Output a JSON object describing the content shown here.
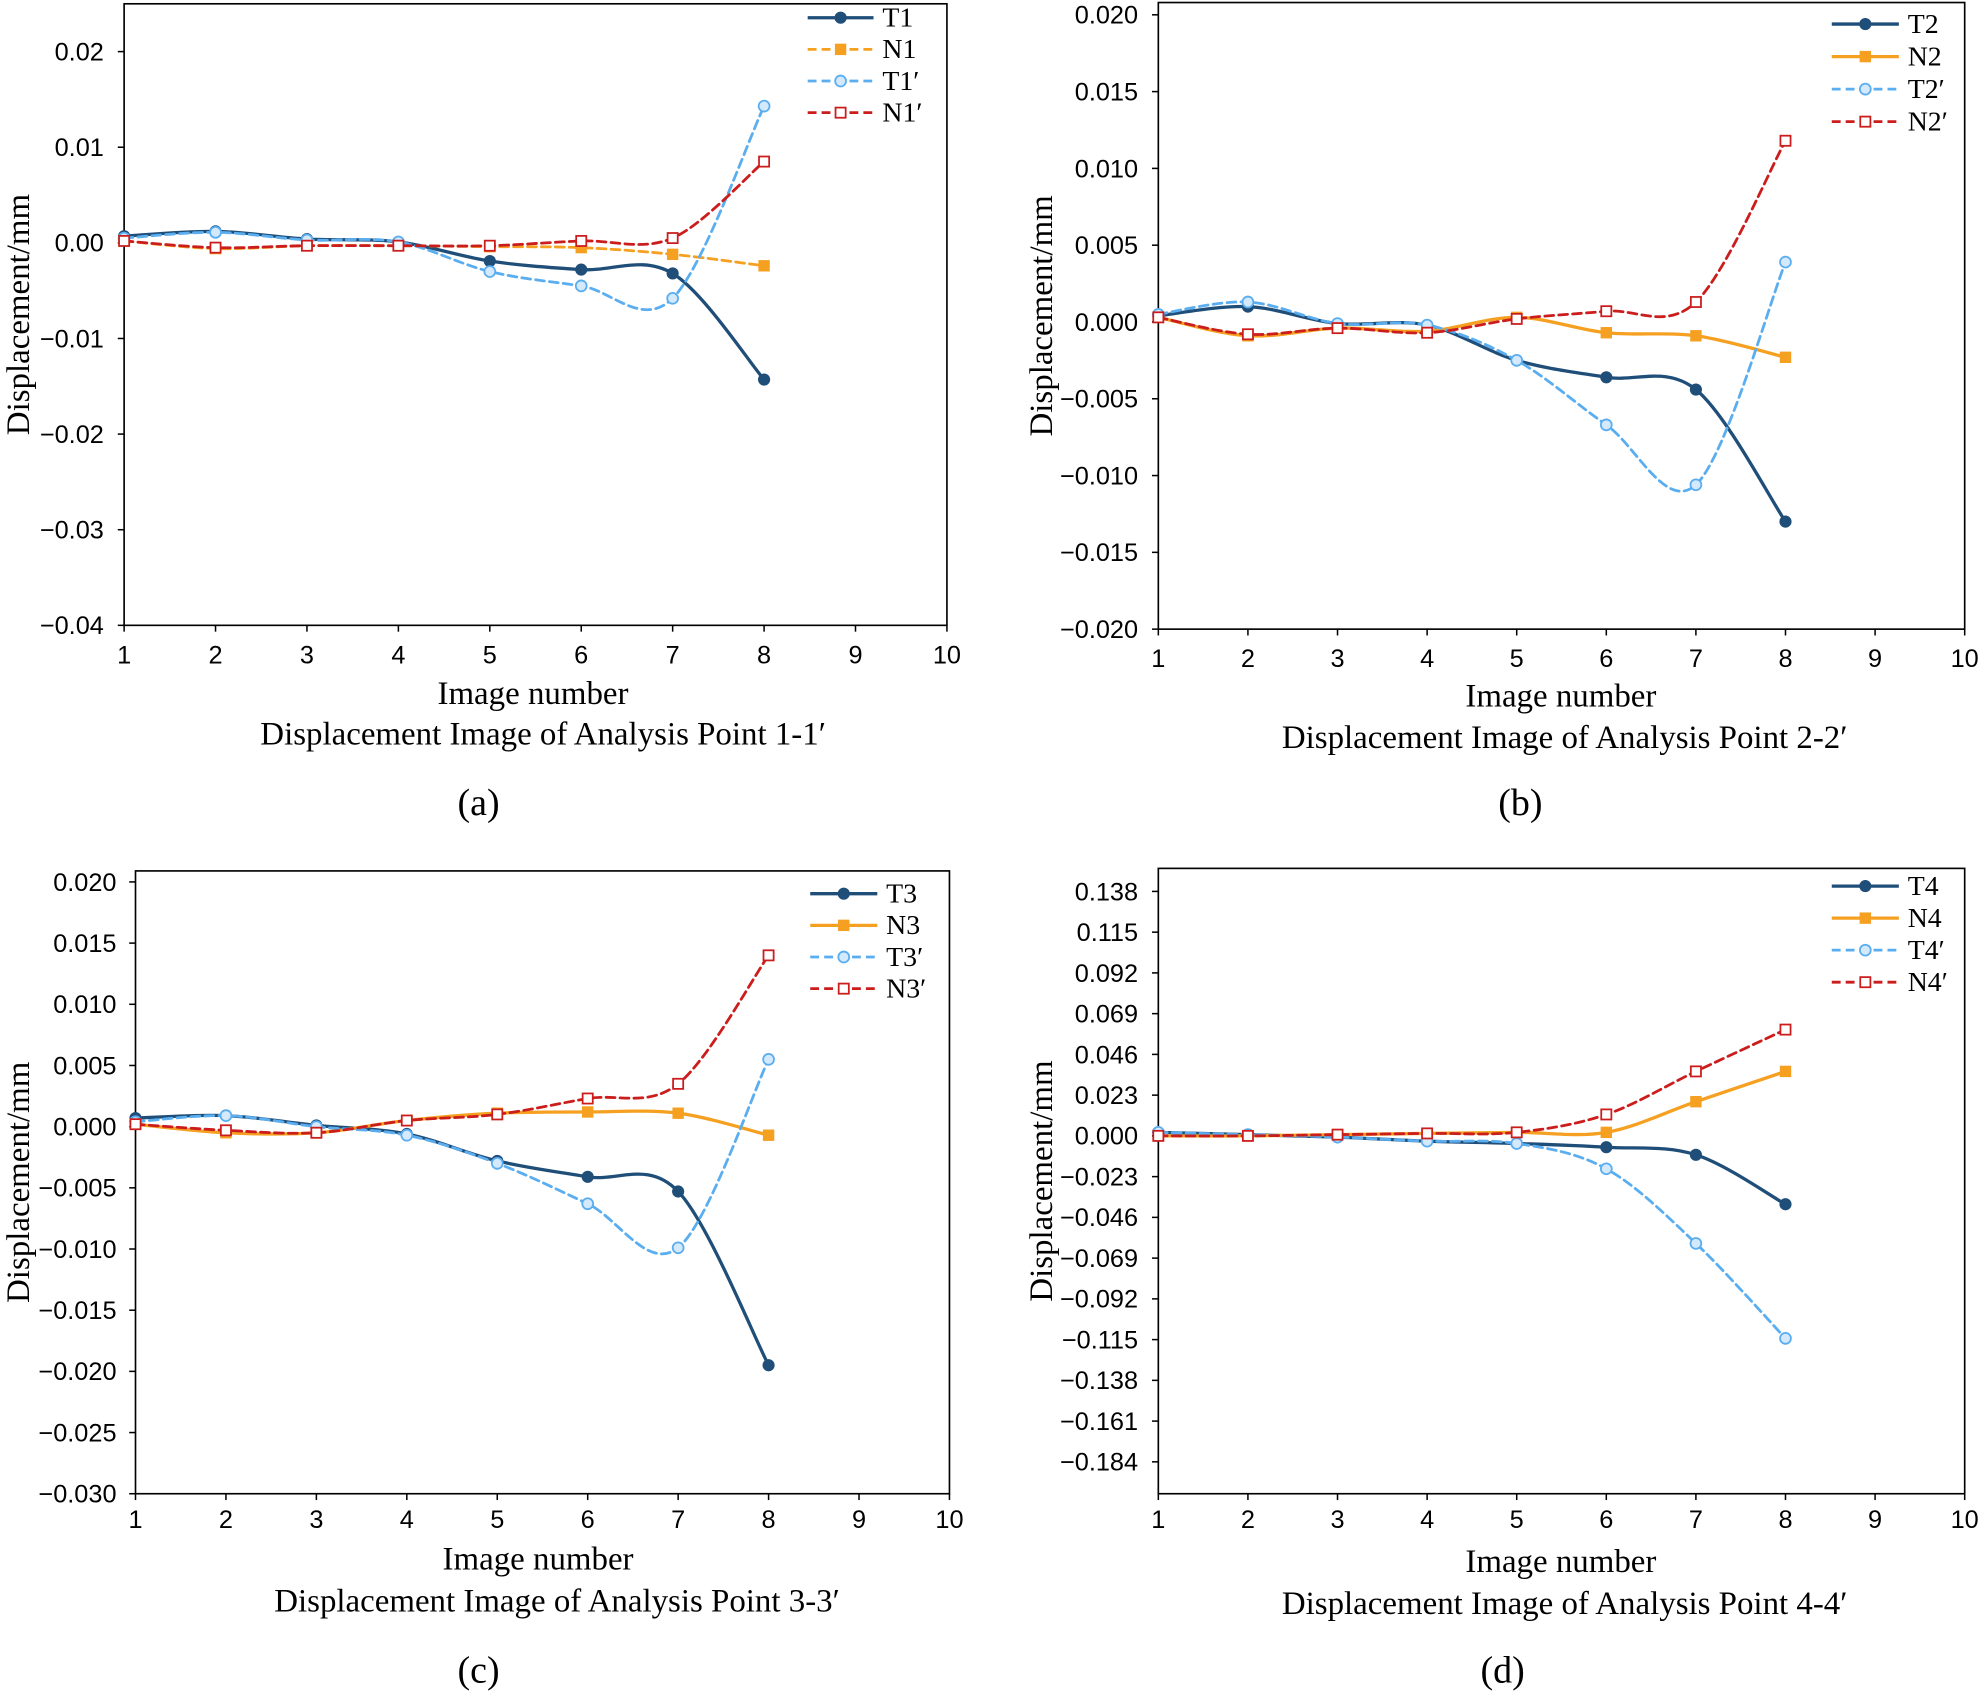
{
  "chart_data": [
    {
      "type": "line",
      "panel_label": "(a)",
      "title": "Displacement Image of Analysis Point 1-1′",
      "xlabel": "Image number",
      "ylabel": "Displacement/mm",
      "xlim": [
        1,
        10
      ],
      "ylim": [
        -0.04,
        0.025
      ],
      "xticks": [
        1,
        2,
        3,
        4,
        5,
        6,
        7,
        8,
        9,
        10
      ],
      "yticks": [
        0.02,
        0.01,
        0,
        -0.01,
        -0.02,
        -0.03,
        -0.04
      ],
      "ytick_labels": [
        "0.02",
        "0.01",
        "0.00",
        "−0.01",
        "−0.02",
        "−0.03",
        "−0.04"
      ],
      "grid": false,
      "legend": "top-right",
      "x": [
        1,
        2,
        3,
        4,
        5,
        6,
        7,
        8
      ],
      "series": [
        {
          "name": "T1",
          "color": "#1f4e79",
          "dashed": false,
          "square_marker": false,
          "hollow_marker": false,
          "values": [
            0.0007,
            0.0012,
            0.0004,
            0.0001,
            -0.0019,
            -0.0028,
            -0.0032,
            -0.0143
          ]
        },
        {
          "name": "N1",
          "color": "#f5a020",
          "dashed": true,
          "square_marker": true,
          "hollow_marker": false,
          "values": [
            0.0002,
            -0.0006,
            -0.0003,
            -0.0003,
            -0.0004,
            -0.0005,
            -0.0012,
            -0.0024
          ]
        },
        {
          "name": "T1′",
          "color": "#5aaef0",
          "marker_fill": "#d4e9fb",
          "dashed": true,
          "square_marker": false,
          "hollow_marker": true,
          "values": [
            0.0005,
            0.0011,
            0.0003,
            0.0001,
            -0.003,
            -0.0045,
            -0.0058,
            0.0143
          ]
        },
        {
          "name": "N1′",
          "color": "#cc1d1d",
          "marker_fill": "#ffffff",
          "dashed": true,
          "square_marker": true,
          "hollow_marker": true,
          "values": [
            0.0002,
            -0.0005,
            -0.0003,
            -0.0003,
            -0.0003,
            0.0002,
            0.0005,
            0.0085
          ]
        }
      ]
    },
    {
      "type": "line",
      "panel_label": "(b)",
      "title": "Displacement Image of Analysis Point 2-2′",
      "xlabel": "Image number",
      "ylabel": "Displacement/mm",
      "xlim": [
        1,
        10
      ],
      "ylim": [
        -0.02,
        0.0208
      ],
      "xticks": [
        1,
        2,
        3,
        4,
        5,
        6,
        7,
        8,
        9,
        10
      ],
      "yticks": [
        0.02,
        0.015,
        0.01,
        0.005,
        0,
        -0.005,
        -0.01,
        -0.015,
        -0.02
      ],
      "ytick_labels": [
        "0.020",
        "0.015",
        "0.010",
        "0.005",
        "0.000",
        "−0.005",
        "−0.010",
        "−0.015",
        "−0.020"
      ],
      "grid": false,
      "legend": "top-right",
      "x": [
        1,
        2,
        3,
        4,
        5,
        6,
        7,
        8
      ],
      "series": [
        {
          "name": "T2",
          "color": "#1f4e79",
          "dashed": false,
          "square_marker": false,
          "hollow_marker": false,
          "values": [
            0.0004,
            0.001,
            -0.0001,
            -0.0002,
            -0.0025,
            -0.0036,
            -0.0044,
            -0.013
          ]
        },
        {
          "name": "N2",
          "color": "#f5a020",
          "dashed": false,
          "square_marker": true,
          "hollow_marker": false,
          "values": [
            0.0003,
            -0.0009,
            -0.0004,
            -0.0006,
            0.0003,
            -0.0007,
            -0.0009,
            -0.0023
          ]
        },
        {
          "name": "T2′",
          "color": "#5aaef0",
          "marker_fill": "#d4e9fb",
          "dashed": true,
          "square_marker": false,
          "hollow_marker": true,
          "values": [
            0.0005,
            0.0013,
            -0.0001,
            -0.0002,
            -0.0025,
            -0.0067,
            -0.0106,
            0.0039
          ]
        },
        {
          "name": "N2′",
          "color": "#cc1d1d",
          "marker_fill": "#ffffff",
          "dashed": true,
          "square_marker": true,
          "hollow_marker": true,
          "values": [
            0.0003,
            -0.0008,
            -0.0004,
            -0.0007,
            0.0002,
            0.0007,
            0.0013,
            0.0118
          ]
        }
      ]
    },
    {
      "type": "line",
      "panel_label": "(c)",
      "title": "Displacement Image of Analysis Point 3-3′",
      "xlabel": "Image number",
      "ylabel": "Displacement/mm",
      "xlim": [
        1,
        10
      ],
      "ylim": [
        -0.03,
        0.0209
      ],
      "xticks": [
        1,
        2,
        3,
        4,
        5,
        6,
        7,
        8,
        9,
        10
      ],
      "yticks": [
        0.02,
        0.015,
        0.01,
        0.005,
        0,
        -0.005,
        -0.01,
        -0.015,
        -0.02,
        -0.025,
        -0.03
      ],
      "ytick_labels": [
        "0.020",
        "0.015",
        "0.010",
        "0.005",
        "0.000",
        "−0.005",
        "−0.010",
        "−0.015",
        "−0.020",
        "−0.025",
        "−0.030"
      ],
      "grid": false,
      "legend": "top-right",
      "x": [
        1,
        2,
        3,
        4,
        5,
        6,
        7,
        8
      ],
      "series": [
        {
          "name": "T3",
          "color": "#1f4e79",
          "dashed": false,
          "square_marker": false,
          "hollow_marker": false,
          "values": [
            0.0007,
            0.0009,
            0.0001,
            -0.0006,
            -0.0028,
            -0.0041,
            -0.0053,
            -0.0195
          ]
        },
        {
          "name": "N3",
          "color": "#f5a020",
          "dashed": false,
          "square_marker": true,
          "hollow_marker": false,
          "values": [
            0.0002,
            -0.0005,
            -0.0005,
            0.0005,
            0.0011,
            0.0012,
            0.0011,
            -0.0007
          ]
        },
        {
          "name": "T3′",
          "color": "#5aaef0",
          "marker_fill": "#d4e9fb",
          "dashed": true,
          "square_marker": false,
          "hollow_marker": true,
          "values": [
            0.0004,
            0.0009,
            0.0,
            -0.0007,
            -0.003,
            -0.0063,
            -0.0099,
            0.0055
          ]
        },
        {
          "name": "N3′",
          "color": "#cc1d1d",
          "marker_fill": "#ffffff",
          "dashed": true,
          "square_marker": true,
          "hollow_marker": true,
          "values": [
            0.0002,
            -0.0003,
            -0.0005,
            0.0005,
            0.001,
            0.0023,
            0.0035,
            0.014
          ]
        }
      ]
    },
    {
      "type": "line",
      "panel_label": "(d)",
      "title": "Displacement Image of Analysis Point 4-4′",
      "xlabel": "Image number",
      "ylabel": "Displacement/mm",
      "xlim": [
        1,
        10
      ],
      "ylim": [
        -0.202,
        0.151
      ],
      "xticks": [
        1,
        2,
        3,
        4,
        5,
        6,
        7,
        8,
        9,
        10
      ],
      "yticks": [
        0.138,
        0.115,
        0.092,
        0.069,
        0.046,
        0.023,
        0,
        -0.023,
        -0.046,
        -0.069,
        -0.092,
        -0.115,
        -0.138,
        -0.161,
        -0.184
      ],
      "ytick_labels": [
        "0.138",
        "0.115",
        "0.092",
        "0.069",
        "0.046",
        "0.023",
        "0.000",
        "−0.023",
        "−0.046",
        "−0.069",
        "−0.092",
        "−0.115",
        "−0.138",
        "−0.161",
        "−0.184"
      ],
      "grid": false,
      "legend": "top-right",
      "x": [
        1,
        2,
        3,
        4,
        5,
        6,
        7,
        8
      ],
      "series": [
        {
          "name": "T4",
          "color": "#1f4e79",
          "dashed": false,
          "square_marker": false,
          "hollow_marker": false,
          "values": [
            0.002,
            0.0007,
            -0.0007,
            -0.003,
            -0.0043,
            -0.0064,
            -0.0107,
            -0.0386
          ]
        },
        {
          "name": "N4",
          "color": "#f5a020",
          "dashed": false,
          "square_marker": true,
          "hollow_marker": false,
          "values": [
            0.0,
            0.0,
            0.0007,
            0.0014,
            0.002,
            0.002,
            0.0193,
            0.0364
          ]
        },
        {
          "name": "T4′",
          "color": "#5aaef0",
          "marker_fill": "#d4e9fb",
          "dashed": true,
          "square_marker": false,
          "hollow_marker": true,
          "values": [
            0.002,
            0.0007,
            -0.0007,
            -0.003,
            -0.0043,
            -0.0186,
            -0.0607,
            -0.1143
          ]
        },
        {
          "name": "N4′",
          "color": "#cc1d1d",
          "marker_fill": "#ffffff",
          "dashed": true,
          "square_marker": true,
          "hollow_marker": true,
          "values": [
            0.0,
            0.0,
            0.0007,
            0.0014,
            0.002,
            0.0121,
            0.0364,
            0.06
          ]
        }
      ]
    }
  ]
}
